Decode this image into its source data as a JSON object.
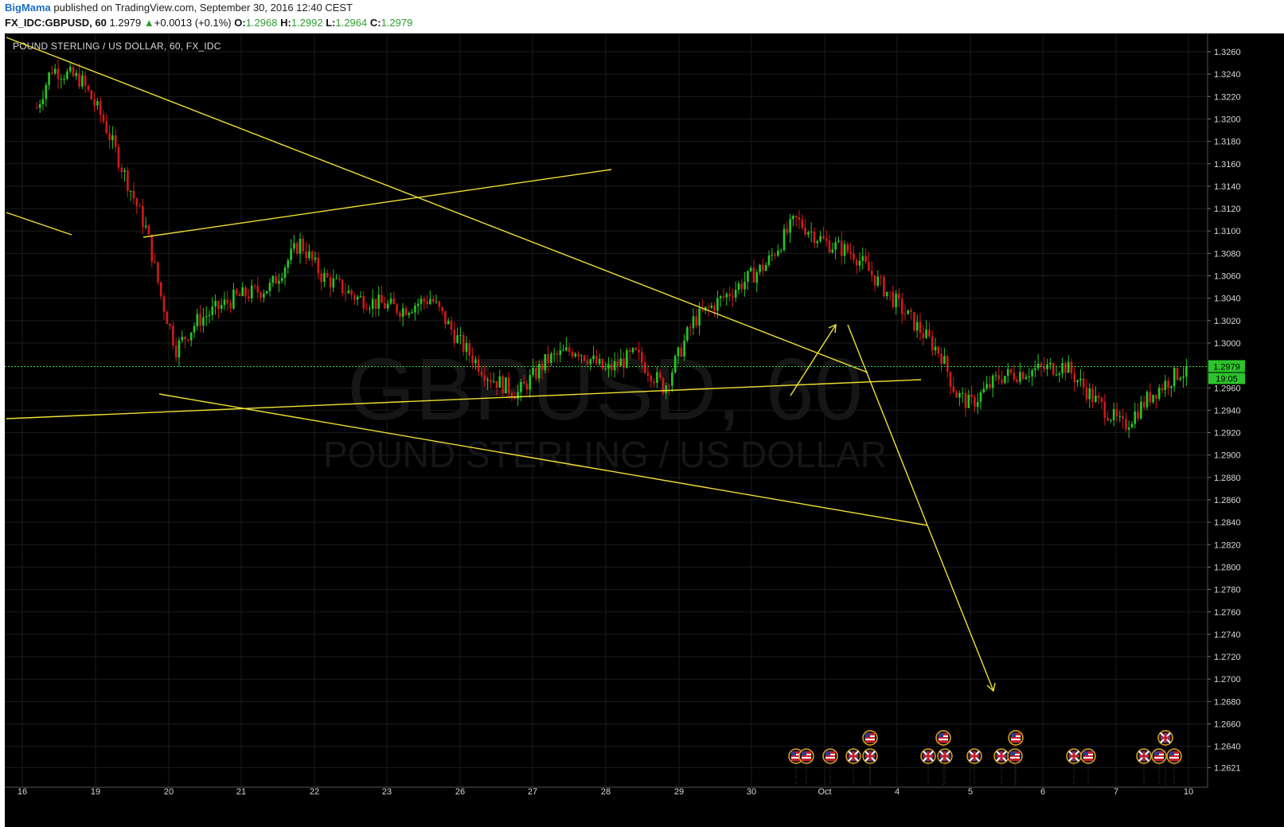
{
  "header": {
    "author": "BigMama",
    "published_text": "published on TradingView.com, September 30, 2016 12:40 CEST",
    "symbol": "FX_IDC:GBPUSD, 60",
    "last": "1.2979",
    "change_arrow": "▲",
    "change": "+0.0013 (+0.1%)",
    "o_label": "O:",
    "o_value": "1.2968",
    "h_label": "H:",
    "h_value": "1.2992",
    "l_label": "L:",
    "l_value": "1.2964",
    "c_label": "C:",
    "c_value": "1.2979"
  },
  "chart_data": {
    "type": "candlestick",
    "title": "POUND STERLING / US DOLLAR, 60, FX_IDC",
    "watermark_symbol": "GBPUSD, 60",
    "watermark_name": "POUND STERLING / US DOLLAR",
    "x_tick_labels": [
      "16",
      "19",
      "20",
      "21",
      "22",
      "23",
      "26",
      "27",
      "28",
      "29",
      "30",
      "Oct",
      "4",
      "5",
      "6",
      "7",
      "10"
    ],
    "y_tick_labels": [
      "1.3260",
      "1.3240",
      "1.3220",
      "1.3200",
      "1.3180",
      "1.3160",
      "1.3140",
      "1.3120",
      "1.3100",
      "1.3080",
      "1.3060",
      "1.3040",
      "1.3020",
      "1.3000",
      "1.2960",
      "1.2940",
      "1.2920",
      "1.2900",
      "1.2880",
      "1.2860",
      "1.2840",
      "1.2820",
      "1.2800",
      "1.2780",
      "1.2760",
      "1.2740",
      "1.2720",
      "1.2700",
      "1.2680",
      "1.2660",
      "1.2640",
      "1.2621"
    ],
    "ylim": [
      1.261,
      1.3275
    ],
    "current_price": "1.2979",
    "countdown": "19:05",
    "price_path": [
      [
        0.2,
        1.321
      ],
      [
        0.4,
        1.3245
      ],
      [
        0.8,
        1.3235
      ],
      [
        1.1,
        1.32
      ],
      [
        1.4,
        1.315
      ],
      [
        1.7,
        1.31
      ],
      [
        1.9,
        1.304
      ],
      [
        2.1,
        1.2995
      ],
      [
        2.4,
        1.302
      ],
      [
        2.9,
        1.304
      ],
      [
        3.4,
        1.305
      ],
      [
        3.8,
        1.309
      ],
      [
        4.1,
        1.306
      ],
      [
        4.6,
        1.304
      ],
      [
        5.2,
        1.303
      ],
      [
        5.6,
        1.304
      ],
      [
        6.0,
        1.3
      ],
      [
        6.4,
        1.297
      ],
      [
        6.8,
        1.2955
      ],
      [
        7.2,
        1.2985
      ],
      [
        7.6,
        1.2995
      ],
      [
        8.0,
        1.2975
      ],
      [
        8.4,
        1.299
      ],
      [
        8.8,
        1.296
      ],
      [
        9.2,
        1.302
      ],
      [
        9.6,
        1.304
      ],
      [
        10.2,
        1.307
      ],
      [
        10.6,
        1.311
      ],
      [
        11.0,
        1.309
      ],
      [
        11.4,
        1.308
      ],
      [
        11.8,
        1.305
      ],
      [
        12.2,
        1.302
      ],
      [
        12.6,
        1.299
      ],
      [
        12.8,
        1.2955
      ],
      [
        13.0,
        1.2945
      ],
      [
        13.4,
        1.297
      ],
      [
        13.8,
        1.2975
      ],
      [
        14.3,
        1.298
      ],
      [
        14.7,
        1.295
      ],
      [
        15.1,
        1.2925
      ],
      [
        15.5,
        1.2955
      ],
      [
        15.9,
        1.2975
      ],
      [
        16.4,
        1.297
      ],
      [
        16.8,
        1.2985
      ],
      [
        17.3,
        1.296
      ],
      [
        17.7,
        1.2985
      ],
      [
        18.0,
        1.3015
      ],
      [
        18.4,
        1.302
      ],
      [
        18.8,
        1.3
      ],
      [
        19.2,
        1.301
      ],
      [
        19.6,
        1.303
      ],
      [
        20.0,
        1.3005
      ],
      [
        20.4,
        1.3025
      ],
      [
        20.8,
        1.303
      ],
      [
        21.2,
        1.305
      ],
      [
        21.6,
        1.3035
      ],
      [
        22.0,
        1.302
      ],
      [
        22.4,
        1.301
      ],
      [
        22.8,
        1.2985
      ],
      [
        23.2,
        1.2965
      ],
      [
        23.6,
        1.296
      ],
      [
        24.0,
        1.2955
      ],
      [
        24.3,
        1.2945
      ],
      [
        24.6,
        1.2979
      ]
    ],
    "drawings": "yellow trend lines, triangle pattern and projection arrows",
    "event_icons": [
      "us-flag-icon",
      "uk-flag-icon"
    ]
  },
  "colors": {
    "background": "#000000",
    "up": "#26c826",
    "down": "#d11a1a",
    "drawing": "#f0e130",
    "price_line": "#33dd33",
    "grid": "#1c1c1c"
  }
}
